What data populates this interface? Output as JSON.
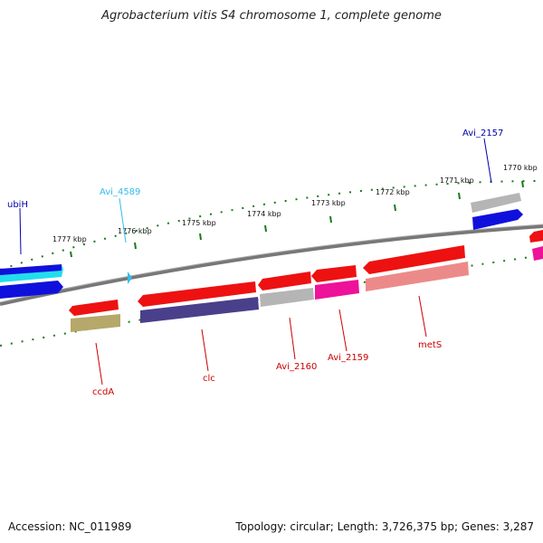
{
  "title": "Agrobacterium vitis S4 chromosome 1, complete genome",
  "footer": {
    "accession": "Accession: NC_011989",
    "summary": "Topology: circular; Length: 3,726,375 bp; Genes: 3,287"
  },
  "ticks": [
    "1777 kbp",
    "1776 kbp",
    "1775 kbp",
    "1774 kbp",
    "1773 kbp",
    "1772 kbp",
    "1771 kbp",
    "1770 kbp"
  ],
  "gene_labels": [
    {
      "name": "ubiH",
      "color": "#0000aa"
    },
    {
      "name": "Avi_4589",
      "color": "#33bbee"
    },
    {
      "name": "Avi_2157",
      "color": "#0000aa"
    },
    {
      "name": "ccdA",
      "color": "#cc0000"
    },
    {
      "name": "clc",
      "color": "#cc0000"
    },
    {
      "name": "Avi_2160",
      "color": "#cc0000"
    },
    {
      "name": "Avi_2159",
      "color": "#cc0000"
    },
    {
      "name": "metS",
      "color": "#cc0000"
    }
  ],
  "colors": {
    "backbone": "#7a7a7a",
    "tick": "#1a7a1a",
    "red": "#ee1111",
    "blue": "#1010dd",
    "cyan": "#22ddee",
    "gray": "#b5b5b5",
    "magenta": "#ee1199",
    "olive": "#b5a86a",
    "navy": "#4a3f8a",
    "salmon": "#ec8a8a"
  }
}
